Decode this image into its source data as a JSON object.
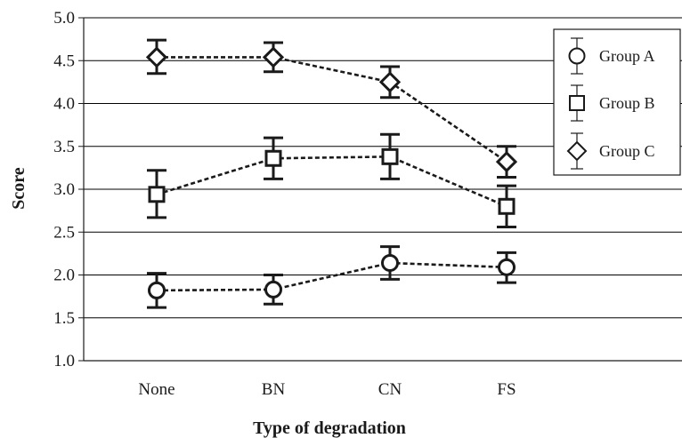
{
  "chart_data": {
    "type": "line",
    "title": "",
    "xlabel": "Type of degradation",
    "ylabel": "Score",
    "categories": [
      "None",
      "BN",
      "CN",
      "FS"
    ],
    "ylim": [
      1.0,
      5.0
    ],
    "yticks": [
      "1.0",
      "1.5",
      "2.0",
      "2.5",
      "3.0",
      "3.5",
      "4.0",
      "4.5",
      "5.0"
    ],
    "grid": true,
    "legend_position": "top-right",
    "series": [
      {
        "name": "Group A",
        "marker": "circle",
        "values": [
          1.82,
          1.83,
          2.14,
          2.09
        ],
        "err_low": [
          1.62,
          1.66,
          1.95,
          1.91
        ],
        "err_high": [
          2.02,
          2.0,
          2.33,
          2.26
        ]
      },
      {
        "name": "Group B",
        "marker": "square",
        "values": [
          2.94,
          3.36,
          3.38,
          2.8
        ],
        "err_low": [
          2.67,
          3.12,
          3.12,
          2.56
        ],
        "err_high": [
          3.22,
          3.6,
          3.64,
          3.04
        ]
      },
      {
        "name": "Group C",
        "marker": "diamond",
        "values": [
          4.54,
          4.54,
          4.25,
          3.32
        ],
        "err_low": [
          4.35,
          4.37,
          4.07,
          3.14
        ],
        "err_high": [
          4.74,
          4.71,
          4.43,
          3.5
        ]
      }
    ],
    "colors": {
      "line": "#1a1a1a",
      "grid": "#000000"
    }
  }
}
